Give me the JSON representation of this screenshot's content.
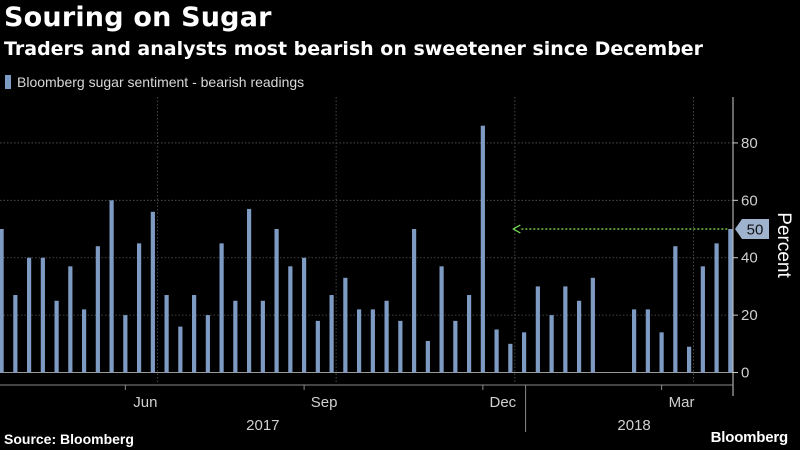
{
  "title": "Souring on Sugar",
  "subtitle": "Traders and analysts most bearish on sweetener since December",
  "source": "Source: Bloomberg",
  "brand": "Bloomberg",
  "colors": {
    "bar": "#7e9bc3",
    "annotation": "#7be85a",
    "grid": "#5a5a5a",
    "axis": "#cfcfcf"
  },
  "chart_data": {
    "type": "bar",
    "title": "Souring on Sugar",
    "subtitle": "Traders and analysts most bearish on sweetener since December",
    "series": [
      {
        "name": "Bloomberg sugar sentiment - bearish readings",
        "values": [
          50,
          27,
          40,
          40,
          25,
          37,
          22,
          44,
          60,
          20,
          45,
          56,
          27,
          16,
          27,
          20,
          45,
          25,
          57,
          25,
          50,
          37,
          40,
          18,
          27,
          33,
          22,
          22,
          25,
          18,
          50,
          11,
          37,
          18,
          27,
          86,
          15,
          10,
          14,
          30,
          20,
          30,
          25,
          33,
          null,
          null,
          22,
          22,
          14,
          44,
          9,
          37,
          45,
          50
        ]
      }
    ],
    "x_labels": [
      {
        "label": "Jun",
        "index": 9
      },
      {
        "label": "Sep",
        "index": 22
      },
      {
        "label": "Dec",
        "index": 35
      },
      {
        "label": "Mar",
        "index": 48
      }
    ],
    "year_labels": [
      {
        "label": "2017",
        "index": 19
      },
      {
        "label": "2018",
        "index": 46
      }
    ],
    "year_divider_index": 38,
    "ylabel": "Percent",
    "ylim": [
      -4,
      96
    ],
    "yticks": [
      0,
      20,
      40,
      60,
      80
    ],
    "y_axis_side": "right",
    "grid": true,
    "legend_position": "top-left",
    "annotation": {
      "value": 50,
      "label": "50",
      "from_index": 53,
      "to_index": 37
    }
  }
}
